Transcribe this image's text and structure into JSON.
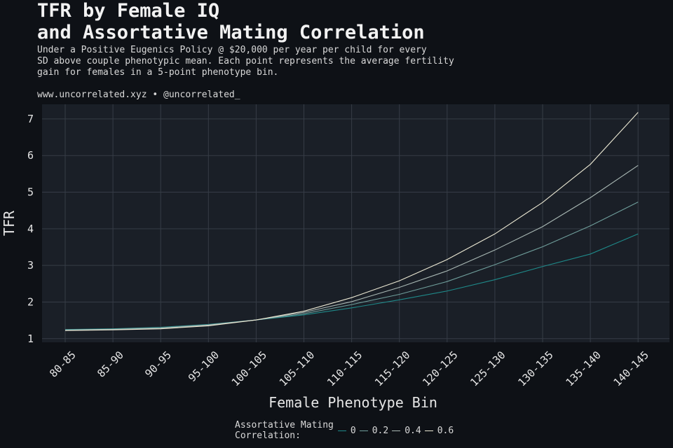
{
  "title": "TFR by Female IQ\nand Assortative Mating Correlation",
  "subtitle": "Under a Positive Eugenics Policy @ $20,000 per year per child for every\nSD above couple phenotypic mean. Each point represents the average fertility\ngain for females in a 5-point phenotype bin.",
  "caption": "www.uncorrelated.xyz • @uncorrelated_",
  "chart_data": {
    "type": "line",
    "xlabel": "Female Phenotype Bin",
    "ylabel": "TFR",
    "categories": [
      "80-85",
      "85-90",
      "90-95",
      "95-100",
      "100-105",
      "105-110",
      "110-115",
      "115-120",
      "120-125",
      "125-130",
      "130-135",
      "135-140",
      "140-145"
    ],
    "ylim": [
      0.9,
      7.4
    ],
    "yticks": [
      1,
      2,
      3,
      4,
      5,
      6,
      7
    ],
    "grid": true,
    "legend_title": "Assortative Mating\nCorrelation:",
    "legend_position": "bottom",
    "series": [
      {
        "name": "0",
        "color": "#1f8a8a",
        "values": [
          1.25,
          1.27,
          1.31,
          1.39,
          1.51,
          1.65,
          1.84,
          2.06,
          2.3,
          2.61,
          2.97,
          3.31,
          3.86
        ]
      },
      {
        "name": "0.2",
        "color": "#6f9e9b",
        "values": [
          1.24,
          1.26,
          1.3,
          1.38,
          1.51,
          1.68,
          1.93,
          2.21,
          2.56,
          3.02,
          3.51,
          4.08,
          4.73
        ]
      },
      {
        "name": "0.4",
        "color": "#a9b8b4",
        "values": [
          1.23,
          1.25,
          1.28,
          1.37,
          1.51,
          1.72,
          2.01,
          2.4,
          2.85,
          3.42,
          4.06,
          4.85,
          5.73
        ]
      },
      {
        "name": "0.6",
        "color": "#ece9d4",
        "values": [
          1.22,
          1.24,
          1.27,
          1.35,
          1.51,
          1.75,
          2.12,
          2.58,
          3.16,
          3.86,
          4.72,
          5.76,
          7.18
        ]
      }
    ]
  }
}
